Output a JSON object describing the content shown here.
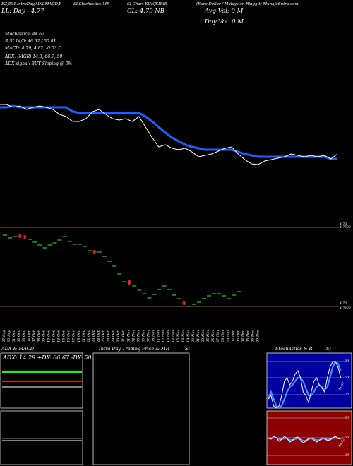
{
  "header": {
    "left": "EZ-504 IntraDay,ADX,MACD,R",
    "mid": "SI,Stochastics,MR",
    "mid2": "SI Chart KUN/SIRIR",
    "right": "(Euro Dollar / Malaysian Ringgit) MunafaSutra.com",
    "cl": "CL: 4.79 NB",
    "ll": "LL: Day - 4.77",
    "avg_vol": "Avg Vol: 0  M",
    "day_vol": "Day Vol: 0  M"
  },
  "indicators": {
    "stochastics": "Stochastics: 44.67",
    "rsi": "R                    SI 14/5: 46.62 / 50.81",
    "macd": "MACD: 4.79, 4.82, -0.03 C",
    "adx": "ADX:                               (MGR) 14.3,  66.7,  50",
    "adx_signal": "ADX  signal:                                  BUY Sloping @ 0%"
  },
  "price_labels": {
    "top": "4.79",
    "top2": "4.7633",
    "bottom": "4.76",
    "bottom2": "4.7433"
  },
  "x_labels": [
    "27 Sep",
    "30 Sep",
    "01 Oct",
    "02 Oct",
    "03 Oct",
    "04 Oct",
    "07 Oct",
    "08 Oct",
    "09 Oct",
    "10 Oct",
    "11 Oct",
    "14 Oct",
    "15 Oct",
    "16 Oct",
    "17 Oct",
    "18 Oct",
    "21 Oct",
    "22 Oct",
    "23 Oct",
    "24 Oct",
    "25 Oct",
    "28 Oct",
    "29 Oct",
    "30 Oct",
    "31 Oct",
    "01 Nov",
    "04 Nov",
    "05 Nov",
    "06 Nov",
    "07 Nov",
    "08 Nov",
    "11 Nov",
    "12 Nov",
    "13 Nov",
    "14 Nov",
    "15 Nov",
    "18 Nov",
    "19 Nov",
    "20 Nov",
    "21 Nov",
    "22 Nov",
    "25 Nov",
    "26 Nov",
    "27 Nov",
    "28 Nov",
    "29 Nov",
    "02 Dec",
    "03 Dec",
    "04 Dec",
    "05 Dec",
    "06 Dec",
    "09 Dec"
  ],
  "panels": {
    "adx_title": "ADX  & MACD",
    "adx_values": "ADX: 14.29 +DY: 66.67 -DY: 50",
    "intraday_title": "Intra  Day Trading Price  & MR",
    "intraday_title2": "SI",
    "stoch_title": "Stochastics & R",
    "stoch_title2": "SI",
    "stoch_ticks": [
      "80",
      "50",
      "20"
    ],
    "rsi_ticks": [
      "80",
      "50",
      "20"
    ],
    "stoch_side": "44.67",
    "rsi_side": "46.62"
  },
  "colors": {
    "background": "#000000",
    "blue": "#1f5fff",
    "white": "#ffffff",
    "green": "#22cc22",
    "red": "#dd2222",
    "orange": "#c97a2a",
    "stoch_bg": "#0000a0",
    "rsi_bg": "#8b0000",
    "adx_green": "#00ff00"
  },
  "chart_data": {
    "type": "line",
    "x": [
      "27 Sep",
      "30 Sep",
      "01 Oct",
      "02 Oct",
      "03 Oct",
      "04 Oct",
      "07 Oct",
      "08 Oct",
      "09 Oct",
      "10 Oct",
      "11 Oct",
      "14 Oct",
      "15 Oct",
      "16 Oct",
      "17 Oct",
      "18 Oct",
      "21 Oct",
      "22 Oct",
      "23 Oct",
      "24 Oct",
      "25 Oct",
      "28 Oct",
      "29 Oct",
      "30 Oct",
      "31 Oct",
      "01 Nov",
      "04 Nov",
      "05 Nov",
      "06 Nov",
      "07 Nov",
      "08 Nov",
      "11 Nov",
      "12 Nov",
      "13 Nov",
      "14 Nov",
      "15 Nov",
      "18 Nov",
      "19 Nov",
      "20 Nov",
      "21 Nov",
      "22 Nov",
      "25 Nov",
      "26 Nov",
      "27 Nov",
      "28 Nov",
      "29 Nov",
      "02 Dec",
      "03 Dec",
      "04 Dec",
      "05 Dec",
      "06 Dec",
      "09 Dec"
    ],
    "series": [
      {
        "values": [
          148,
          148,
          152,
          150,
          155,
          152,
          150,
          152,
          155,
          162,
          165,
          172,
          172,
          168,
          158,
          155,
          162,
          168,
          170,
          168,
          172,
          165,
          180,
          195,
          208,
          205,
          210,
          212,
          210,
          215,
          222,
          220,
          218,
          214,
          210,
          208,
          218,
          226,
          232,
          233,
          228,
          226,
          224,
          222,
          218,
          220,
          222,
          220,
          222,
          220,
          225,
          218
        ]
      },
      {
        "values": [
          152,
          152,
          150,
          152,
          152,
          152,
          152,
          152,
          152,
          152,
          152,
          158,
          160,
          160,
          160,
          160,
          160,
          160,
          160,
          160,
          160,
          160,
          165,
          172,
          180,
          188,
          195,
          200,
          205,
          208,
          210,
          212,
          212,
          212,
          212,
          212,
          215,
          218,
          220,
          222,
          222,
          222,
          222,
          222,
          222,
          222,
          222,
          222,
          222,
          222,
          225,
          225
        ]
      }
    ],
    "candles": [
      {
        "x": 0,
        "y": 333,
        "c": "green"
      },
      {
        "x": 1,
        "y": 337,
        "c": "green"
      },
      {
        "x": 2,
        "y": 335,
        "c": "green"
      },
      {
        "x": 3,
        "y": 334,
        "c": "red"
      },
      {
        "x": 4,
        "y": 336,
        "c": "red"
      },
      {
        "x": 5,
        "y": 339,
        "c": "green"
      },
      {
        "x": 6,
        "y": 343,
        "c": "green"
      },
      {
        "x": 7,
        "y": 347,
        "c": "green"
      },
      {
        "x": 8,
        "y": 351,
        "c": "green"
      },
      {
        "x": 9,
        "y": 347,
        "c": "green"
      },
      {
        "x": 10,
        "y": 344,
        "c": "green"
      },
      {
        "x": 11,
        "y": 340,
        "c": "green"
      },
      {
        "x": 12,
        "y": 335,
        "c": "green"
      },
      {
        "x": 13,
        "y": 342,
        "c": "green"
      },
      {
        "x": 14,
        "y": 346,
        "c": "green"
      },
      {
        "x": 15,
        "y": 346,
        "c": "green"
      },
      {
        "x": 16,
        "y": 349,
        "c": "green"
      },
      {
        "x": 17,
        "y": 355,
        "c": "green"
      },
      {
        "x": 18,
        "y": 357,
        "c": "red"
      },
      {
        "x": 19,
        "y": 357,
        "c": "green"
      },
      {
        "x": 20,
        "y": 363,
        "c": "green"
      },
      {
        "x": 21,
        "y": 370,
        "c": "green"
      },
      {
        "x": 22,
        "y": 377,
        "c": "green"
      },
      {
        "x": 23,
        "y": 388,
        "c": "green"
      },
      {
        "x": 24,
        "y": 399,
        "c": "green"
      },
      {
        "x": 25,
        "y": 400,
        "c": "red"
      },
      {
        "x": 26,
        "y": 405,
        "c": "green"
      },
      {
        "x": 27,
        "y": 411,
        "c": "green"
      },
      {
        "x": 28,
        "y": 416,
        "c": "green"
      },
      {
        "x": 29,
        "y": 422,
        "c": "green"
      },
      {
        "x": 30,
        "y": 417,
        "c": "green"
      },
      {
        "x": 31,
        "y": 410,
        "c": "green"
      },
      {
        "x": 32,
        "y": 405,
        "c": "green"
      },
      {
        "x": 33,
        "y": 410,
        "c": "green"
      },
      {
        "x": 34,
        "y": 418,
        "c": "green"
      },
      {
        "x": 35,
        "y": 423,
        "c": "green"
      },
      {
        "x": 36,
        "y": 429,
        "c": "red"
      },
      {
        "x": 37,
        "y": 434,
        "c": "green"
      },
      {
        "x": 38,
        "y": 431,
        "c": "green"
      },
      {
        "x": 39,
        "y": 428,
        "c": "green"
      },
      {
        "x": 40,
        "y": 423,
        "c": "green"
      },
      {
        "x": 41,
        "y": 419,
        "c": "green"
      },
      {
        "x": 42,
        "y": 416,
        "c": "green"
      },
      {
        "x": 43,
        "y": 416,
        "c": "green"
      },
      {
        "x": 44,
        "y": 419,
        "c": "green"
      },
      {
        "x": 45,
        "y": 423,
        "c": "green"
      },
      {
        "x": 46,
        "y": 418,
        "c": "green"
      },
      {
        "x": 47,
        "y": 413,
        "c": "green"
      }
    ]
  }
}
